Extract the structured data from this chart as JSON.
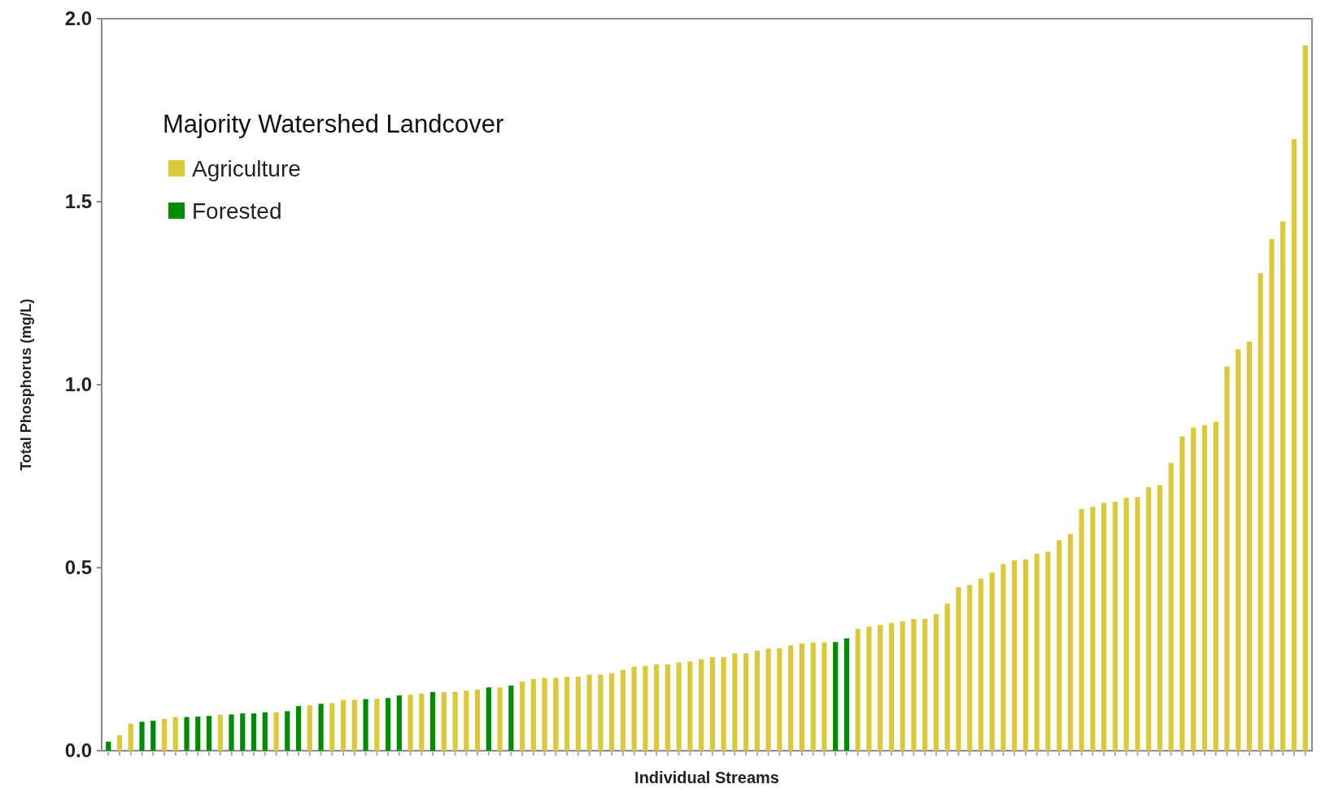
{
  "chart_data": {
    "type": "bar",
    "xlabel": "Individual Streams",
    "ylabel": "Total Phosphorus (mg/L)",
    "legend_title": "Majority Watershed Landcover",
    "legend": "top left",
    "grid": false,
    "stacked": true,
    "categories": [
      null,
      null,
      null,
      null,
      null,
      null,
      null,
      null,
      null,
      null,
      null,
      null,
      null,
      null,
      null,
      null,
      null,
      null,
      null,
      null,
      null,
      null,
      null,
      null,
      null,
      null,
      null,
      null,
      null,
      null,
      null,
      null,
      null,
      null,
      null,
      null,
      null,
      null,
      null,
      null,
      null,
      null,
      null,
      null,
      null,
      null,
      null,
      null,
      null,
      null,
      null,
      null,
      null,
      null,
      null,
      null,
      null,
      null,
      null,
      null,
      null,
      null,
      null,
      null,
      null,
      null,
      null,
      null,
      null,
      null,
      null,
      null,
      null,
      null,
      null,
      null,
      null,
      null,
      null,
      null,
      null,
      null,
      null,
      null,
      null,
      null,
      null,
      null,
      null,
      null,
      null,
      null,
      null,
      null,
      null,
      null,
      null,
      null,
      null,
      null,
      null,
      null,
      null,
      null,
      null,
      null,
      null,
      null
    ],
    "ylim": [
      0,
      2
    ],
    "yticks": [
      {
        "value": 0,
        "label": "0.0"
      },
      {
        "value": 0.5,
        "label": "0.5"
      },
      {
        "value": 1,
        "label": "1.0"
      },
      {
        "value": 1.5,
        "label": "1.5"
      },
      {
        "value": 2,
        "label": "2.0"
      }
    ],
    "series": [
      {
        "name": "Agriculture",
        "color": "#dcc93a",
        "values": [
          null,
          0.042,
          0.074,
          null,
          null,
          0.087,
          0.092,
          null,
          null,
          null,
          0.098,
          null,
          null,
          null,
          null,
          0.105,
          null,
          null,
          0.124,
          null,
          0.13,
          0.139,
          0.139,
          null,
          0.142,
          null,
          null,
          0.153,
          0.156,
          null,
          0.16,
          0.161,
          0.164,
          0.167,
          null,
          0.173,
          null,
          0.189,
          0.196,
          0.199,
          0.199,
          0.202,
          0.202,
          0.208,
          0.208,
          0.212,
          0.221,
          0.23,
          0.232,
          0.236,
          0.236,
          0.241,
          0.244,
          0.25,
          0.256,
          0.256,
          0.266,
          0.266,
          0.273,
          0.279,
          0.28,
          0.288,
          0.293,
          0.296,
          0.296,
          null,
          null,
          0.333,
          0.339,
          0.344,
          0.349,
          0.354,
          0.36,
          0.36,
          0.373,
          0.402,
          0.447,
          0.453,
          0.47,
          0.487,
          0.51,
          0.52,
          0.523,
          0.538,
          0.544,
          0.575,
          0.592,
          0.66,
          0.666,
          0.677,
          0.68,
          0.691,
          0.693,
          0.72,
          0.726,
          0.786,
          0.859,
          0.883,
          0.89,
          0.899,
          1.05,
          1.097,
          1.118,
          1.305,
          1.398,
          1.446,
          1.671,
          1.927
        ]
      },
      {
        "name": "Forested",
        "color": "#008c00",
        "values": [
          0.025,
          null,
          null,
          0.079,
          0.082,
          null,
          null,
          0.092,
          0.093,
          0.095,
          null,
          0.099,
          0.102,
          0.102,
          0.105,
          null,
          0.108,
          0.122,
          null,
          0.128,
          null,
          null,
          null,
          0.141,
          null,
          0.144,
          0.151,
          null,
          null,
          0.16,
          null,
          null,
          null,
          null,
          0.173,
          null,
          0.178,
          null,
          null,
          null,
          null,
          null,
          null,
          null,
          null,
          null,
          null,
          null,
          null,
          null,
          null,
          null,
          null,
          null,
          null,
          null,
          null,
          null,
          null,
          null,
          null,
          null,
          null,
          null,
          null,
          0.297,
          0.307,
          null,
          null,
          null,
          null,
          null,
          null,
          null,
          null,
          null,
          null,
          null,
          null,
          null,
          null,
          null,
          null,
          null,
          null,
          null,
          null,
          null,
          null,
          null,
          null,
          null,
          null,
          null,
          null,
          null,
          null,
          null,
          null,
          null,
          null,
          null,
          null,
          null,
          null,
          null,
          null,
          null
        ]
      }
    ]
  }
}
